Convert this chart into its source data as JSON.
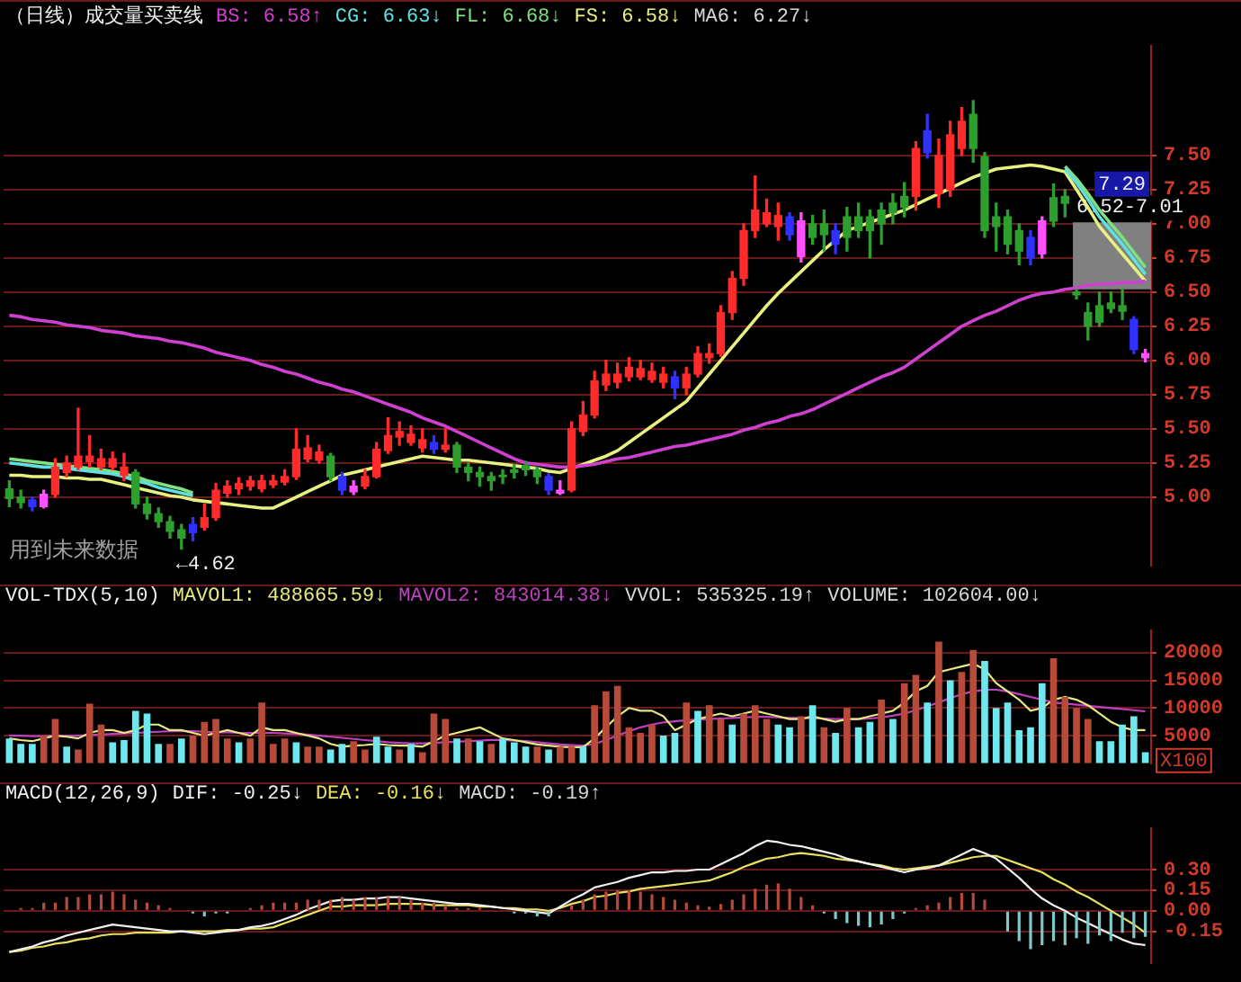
{
  "chart_data": [
    {
      "type": "candlestick",
      "title": "（日线）成交量买卖线",
      "categories": [
        null,
        null,
        null,
        null,
        null,
        null,
        null,
        null,
        null,
        null,
        null,
        null,
        null,
        null,
        null,
        null,
        null,
        null,
        null,
        null,
        null,
        null,
        null,
        null,
        null,
        null,
        null,
        null,
        null,
        null,
        null,
        null,
        null,
        null,
        null,
        null,
        null,
        null,
        null,
        null,
        null,
        null,
        null,
        null,
        null,
        null,
        null,
        null,
        null,
        null,
        null,
        null,
        null,
        null,
        null,
        null,
        null,
        null,
        null,
        null,
        null,
        null,
        null,
        null,
        null,
        null,
        null,
        null,
        null,
        null,
        null,
        null,
        null,
        null,
        null,
        null,
        null,
        null,
        null,
        null,
        null,
        null,
        null,
        null,
        null,
        null,
        null,
        null,
        null,
        null,
        null,
        null,
        null,
        null,
        null,
        null,
        null,
        null,
        null,
        null
      ],
      "ohlc": [
        [
          5.06,
          5.12,
          4.93,
          4.99
        ],
        [
          5.0,
          5.05,
          4.92,
          4.96
        ],
        [
          4.98,
          5.0,
          4.9,
          4.93
        ],
        [
          4.93,
          5.05,
          4.92,
          5.02
        ],
        [
          5.02,
          5.28,
          5.0,
          5.22
        ],
        [
          5.18,
          5.3,
          5.15,
          5.25
        ],
        [
          5.22,
          5.65,
          5.2,
          5.3
        ],
        [
          5.26,
          5.45,
          5.22,
          5.3
        ],
        [
          5.22,
          5.35,
          5.2,
          5.28
        ],
        [
          5.22,
          5.33,
          5.2,
          5.28
        ],
        [
          5.16,
          5.32,
          5.12,
          5.22
        ],
        [
          5.18,
          5.2,
          4.92,
          4.95
        ],
        [
          4.95,
          5.0,
          4.84,
          4.88
        ],
        [
          4.88,
          4.92,
          4.78,
          4.82
        ],
        [
          4.82,
          4.86,
          4.7,
          4.75
        ],
        [
          4.76,
          4.8,
          4.62,
          4.7
        ],
        [
          4.8,
          4.85,
          4.68,
          4.74
        ],
        [
          4.78,
          4.95,
          4.76,
          4.85
        ],
        [
          4.85,
          5.1,
          4.83,
          5.05
        ],
        [
          5.03,
          5.12,
          5.0,
          5.08
        ],
        [
          5.06,
          5.14,
          5.02,
          5.1
        ],
        [
          5.08,
          5.15,
          5.05,
          5.12
        ],
        [
          5.06,
          5.16,
          5.04,
          5.12
        ],
        [
          5.09,
          5.16,
          5.07,
          5.12
        ],
        [
          5.11,
          5.2,
          5.09,
          5.15
        ],
        [
          5.15,
          5.5,
          5.13,
          5.35
        ],
        [
          5.28,
          5.45,
          5.26,
          5.36
        ],
        [
          5.27,
          5.38,
          5.25,
          5.33
        ],
        [
          5.3,
          5.32,
          5.12,
          5.15
        ],
        [
          5.15,
          5.18,
          5.02,
          5.05
        ],
        [
          5.04,
          5.12,
          5.02,
          5.08
        ],
        [
          5.08,
          5.2,
          5.06,
          5.15
        ],
        [
          5.15,
          5.4,
          5.14,
          5.35
        ],
        [
          5.34,
          5.58,
          5.32,
          5.45
        ],
        [
          5.44,
          5.55,
          5.38,
          5.48
        ],
        [
          5.4,
          5.52,
          5.38,
          5.46
        ],
        [
          5.36,
          5.5,
          5.33,
          5.42
        ],
        [
          5.4,
          5.45,
          5.32,
          5.35
        ],
        [
          5.35,
          5.5,
          5.33,
          5.38
        ],
        [
          5.38,
          5.4,
          5.18,
          5.22
        ],
        [
          5.22,
          5.25,
          5.12,
          5.18
        ],
        [
          5.18,
          5.22,
          5.08,
          5.15
        ],
        [
          5.15,
          5.18,
          5.05,
          5.12
        ],
        [
          5.16,
          5.2,
          5.1,
          5.15
        ],
        [
          5.2,
          5.24,
          5.14,
          5.18
        ],
        [
          5.23,
          5.26,
          5.16,
          5.2
        ],
        [
          5.2,
          5.22,
          5.1,
          5.15
        ],
        [
          5.15,
          5.17,
          5.02,
          5.05
        ],
        [
          5.03,
          5.12,
          5.02,
          5.05
        ],
        [
          5.05,
          5.55,
          5.04,
          5.5
        ],
        [
          5.48,
          5.7,
          5.45,
          5.6
        ],
        [
          5.6,
          5.92,
          5.58,
          5.85
        ],
        [
          5.82,
          6.0,
          5.78,
          5.9
        ],
        [
          5.84,
          5.98,
          5.8,
          5.9
        ],
        [
          5.88,
          6.02,
          5.85,
          5.95
        ],
        [
          5.88,
          6.0,
          5.86,
          5.94
        ],
        [
          5.86,
          5.98,
          5.84,
          5.92
        ],
        [
          5.84,
          5.95,
          5.8,
          5.9
        ],
        [
          5.88,
          5.92,
          5.72,
          5.8
        ],
        [
          5.8,
          5.95,
          5.75,
          5.9
        ],
        [
          5.9,
          6.1,
          5.88,
          6.05
        ],
        [
          6.02,
          6.12,
          5.98,
          6.05
        ],
        [
          6.05,
          6.4,
          6.03,
          6.35
        ],
        [
          6.35,
          6.65,
          6.3,
          6.6
        ],
        [
          6.6,
          7.0,
          6.55,
          6.95
        ],
        [
          6.95,
          7.35,
          6.9,
          7.1
        ],
        [
          7.0,
          7.18,
          6.98,
          7.08
        ],
        [
          6.98,
          7.15,
          6.88,
          7.06
        ],
        [
          7.05,
          7.08,
          6.88,
          6.92
        ],
        [
          6.76,
          7.08,
          6.72,
          7.02
        ],
        [
          7.0,
          7.06,
          6.85,
          6.9
        ],
        [
          7.0,
          7.1,
          6.8,
          6.92
        ],
        [
          6.95,
          7.0,
          6.78,
          6.85
        ],
        [
          7.05,
          7.12,
          6.8,
          6.9
        ],
        [
          7.05,
          7.15,
          6.9,
          6.95
        ],
        [
          7.05,
          7.1,
          6.75,
          6.95
        ],
        [
          7.1,
          7.15,
          6.85,
          7.0
        ],
        [
          7.15,
          7.22,
          7.0,
          7.08
        ],
        [
          7.2,
          7.3,
          7.05,
          7.12
        ],
        [
          7.2,
          7.6,
          7.1,
          7.55
        ],
        [
          7.68,
          7.8,
          7.48,
          7.52
        ],
        [
          7.22,
          7.62,
          7.12,
          7.5
        ],
        [
          7.25,
          7.75,
          7.2,
          7.65
        ],
        [
          7.55,
          7.85,
          7.5,
          7.75
        ],
        [
          7.8,
          7.9,
          7.45,
          7.55
        ],
        [
          7.49,
          7.52,
          6.9,
          6.95
        ],
        [
          7.05,
          7.15,
          6.8,
          6.98
        ],
        [
          7.05,
          7.1,
          6.78,
          6.85
        ],
        [
          6.95,
          7.0,
          6.7,
          6.8
        ],
        [
          6.9,
          6.95,
          6.7,
          6.75
        ],
        [
          6.78,
          7.05,
          6.75,
          7.02
        ],
        [
          7.19,
          7.29,
          6.98,
          7.02
        ],
        [
          7.2,
          7.25,
          7.05,
          7.15
        ],
        [
          6.5,
          6.52,
          6.45,
          6.48
        ],
        [
          6.35,
          6.42,
          6.15,
          6.25
        ],
        [
          6.4,
          6.5,
          6.25,
          6.28
        ],
        [
          6.42,
          6.5,
          6.35,
          6.38
        ],
        [
          6.4,
          6.52,
          6.3,
          6.36
        ],
        [
          6.3,
          6.32,
          6.05,
          6.08
        ],
        [
          6.02,
          6.08,
          5.99,
          6.05
        ]
      ],
      "colors": [
        "#2e9e2e",
        "#2e9e2e",
        "#3030ff",
        "#ff50ff",
        "#ff2a2a",
        "#ff2a2a",
        "#ff2a2a",
        "#ff2a2a",
        "#ff2a2a",
        "#ff2a2a",
        "#ff2a2a",
        "#2e9e2e",
        "#2e9e2e",
        "#2e9e2e",
        "#2e9e2e",
        "#2e9e2e",
        "#3030ff",
        "#ff2a2a",
        "#ff2a2a",
        "#ff2a2a",
        "#ff2a2a",
        "#ff2a2a",
        "#ff2a2a",
        "#ff2a2a",
        "#ff2a2a",
        "#ff2a2a",
        "#ff2a2a",
        "#ff2a2a",
        "#2e9e2e",
        "#3030ff",
        "#ff50ff",
        "#ff2a2a",
        "#ff2a2a",
        "#ff2a2a",
        "#ff2a2a",
        "#ff2a2a",
        "#ff2a2a",
        "#3030ff",
        "#ff2a2a",
        "#2e9e2e",
        "#2e9e2e",
        "#2e9e2e",
        "#2e9e2e",
        "#2e9e2e",
        "#2e9e2e",
        "#2e9e2e",
        "#2e9e2e",
        "#3030ff",
        "#ff50ff",
        "#ff2a2a",
        "#ff2a2a",
        "#ff2a2a",
        "#ff2a2a",
        "#ff2a2a",
        "#ff2a2a",
        "#ff2a2a",
        "#ff2a2a",
        "#ff2a2a",
        "#3030ff",
        "#ff2a2a",
        "#ff2a2a",
        "#ff2a2a",
        "#ff2a2a",
        "#ff2a2a",
        "#ff2a2a",
        "#ff2a2a",
        "#ff2a2a",
        "#ff2a2a",
        "#3030ff",
        "#ff50ff",
        "#2e9e2e",
        "#2e9e2e",
        "#3030ff",
        "#2e9e2e",
        "#2e9e2e",
        "#2e9e2e",
        "#2e9e2e",
        "#2e9e2e",
        "#2e9e2e",
        "#ff2a2a",
        "#3030ff",
        "#ff2a2a",
        "#ff2a2a",
        "#ff2a2a",
        "#2e9e2e",
        "#2e9e2e",
        "#2e9e2e",
        "#2e9e2e",
        "#2e9e2e",
        "#3030ff",
        "#ff50ff",
        "#2e9e2e",
        "#2e9e2e",
        "#2e9e2e",
        "#2e9e2e",
        "#2e9e2e",
        "#2e9e2e",
        "#2e9e2e",
        "#3030ff",
        "#ff50ff"
      ],
      "series": [
        {
          "name": "BS: 6.58↑",
          "color": "#d040d0",
          "type": "line",
          "values": [
            6.33,
            6.32,
            6.3,
            6.29,
            6.28,
            6.26,
            6.25,
            6.24,
            6.22,
            6.21,
            6.2,
            6.18,
            6.17,
            6.16,
            6.14,
            6.13,
            6.11,
            6.09,
            6.06,
            6.04,
            6.02,
            6.0,
            5.97,
            5.95,
            5.92,
            5.9,
            5.87,
            5.84,
            5.82,
            5.79,
            5.77,
            5.74,
            5.71,
            5.68,
            5.65,
            5.62,
            5.58,
            5.55,
            5.52,
            5.48,
            5.44,
            5.4,
            5.36,
            5.32,
            5.28,
            5.25,
            5.24,
            5.23,
            5.22,
            5.22,
            5.23,
            5.24,
            5.26,
            5.28,
            5.29,
            5.31,
            5.33,
            5.35,
            5.37,
            5.38,
            5.4,
            5.42,
            5.44,
            5.46,
            5.49,
            5.51,
            5.54,
            5.56,
            5.59,
            5.61,
            5.64,
            5.68,
            5.72,
            5.76,
            5.8,
            5.84,
            5.88,
            5.91,
            5.95,
            6.01,
            6.07,
            6.13,
            6.19,
            6.25,
            6.29,
            6.33,
            6.36,
            6.4,
            6.44,
            6.47,
            6.49,
            6.5,
            6.52,
            6.53,
            6.55,
            6.56,
            6.56,
            6.57,
            6.57,
            6.58
          ]
        },
        {
          "name": "CG: 6.63↓",
          "color": "#60e0e0",
          "type": "line",
          "values": [
            5.25,
            5.24,
            5.23,
            5.22,
            5.22,
            5.21,
            5.2,
            5.19,
            5.18,
            5.17,
            5.15,
            5.12,
            5.1,
            5.07,
            5.05,
            5.03,
            5.01,
            null,
            null,
            null,
            null,
            null,
            null,
            null,
            null,
            null,
            null,
            null,
            null,
            null,
            null,
            null,
            null,
            null,
            null,
            null,
            null,
            null,
            null,
            null,
            null,
            null,
            null,
            null,
            null,
            null,
            null,
            null,
            null,
            null,
            null,
            null,
            null,
            null,
            null,
            null,
            null,
            null,
            null,
            null,
            null,
            null,
            null,
            null,
            null,
            null,
            null,
            null,
            null,
            null,
            null,
            null,
            null,
            null,
            null,
            null,
            null,
            null,
            null,
            null,
            null,
            null,
            null,
            null,
            null,
            null,
            null,
            null,
            null,
            null,
            null,
            null,
            7.4,
            7.3,
            7.18,
            7.05,
            6.95,
            6.85,
            6.74,
            6.63
          ]
        },
        {
          "name": "FL: 6.68↓",
          "color": "#80e080",
          "type": "line",
          "values": [
            5.28,
            5.27,
            5.26,
            5.25,
            5.24,
            5.23,
            5.22,
            5.21,
            5.2,
            5.19,
            5.17,
            5.15,
            5.12,
            5.1,
            5.08,
            5.06,
            5.03,
            null,
            null,
            null,
            null,
            null,
            null,
            null,
            null,
            null,
            null,
            null,
            null,
            null,
            null,
            null,
            null,
            null,
            null,
            null,
            null,
            null,
            null,
            null,
            null,
            null,
            null,
            null,
            null,
            null,
            null,
            null,
            null,
            null,
            null,
            null,
            null,
            null,
            null,
            null,
            null,
            null,
            null,
            null,
            null,
            null,
            null,
            null,
            null,
            null,
            null,
            null,
            null,
            null,
            null,
            null,
            null,
            null,
            null,
            null,
            null,
            null,
            null,
            null,
            null,
            null,
            null,
            null,
            null,
            null,
            null,
            null,
            null,
            null,
            null,
            null,
            7.42,
            7.33,
            7.22,
            7.1,
            7.0,
            6.9,
            6.79,
            6.68
          ]
        },
        {
          "name": "FS: 6.58↓",
          "color": "#e8f080",
          "type": "line",
          "values": [
            5.16,
            5.16,
            5.15,
            5.15,
            5.15,
            5.14,
            5.14,
            5.13,
            5.13,
            5.11,
            5.09,
            5.07,
            5.05,
            5.03,
            5.01,
            5.0,
            4.98,
            4.97,
            4.96,
            4.95,
            4.94,
            4.93,
            4.92,
            4.92,
            4.96,
            5.0,
            5.04,
            5.08,
            5.12,
            5.16,
            5.18,
            5.2,
            5.22,
            5.24,
            5.26,
            5.28,
            5.3,
            5.29,
            5.28,
            5.27,
            5.27,
            5.26,
            5.25,
            5.24,
            5.23,
            5.22,
            5.21,
            5.19,
            5.18,
            5.21,
            5.24,
            5.27,
            5.3,
            5.34,
            5.4,
            5.46,
            5.52,
            5.58,
            5.64,
            5.7,
            5.8,
            5.9,
            6.0,
            6.1,
            6.2,
            6.3,
            6.4,
            6.49,
            6.57,
            6.65,
            6.73,
            6.81,
            6.88,
            6.95,
            6.98,
            7.01,
            7.04,
            7.07,
            7.1,
            7.14,
            7.18,
            7.22,
            7.26,
            7.3,
            7.34,
            7.37,
            7.4,
            7.41,
            7.42,
            7.43,
            7.42,
            7.4,
            7.38,
            7.25,
            7.12,
            6.98,
            6.88,
            6.78,
            6.68,
            6.58
          ]
        }
      ],
      "ylim": [
        4.5,
        8.3
      ],
      "yticks": [
        {
          "value": 5,
          "label": "5.00"
        },
        {
          "value": 5.25,
          "label": "5.25"
        },
        {
          "value": 5.5,
          "label": "5.50"
        },
        {
          "value": 5.75,
          "label": "5.75"
        },
        {
          "value": 6,
          "label": "6.00"
        },
        {
          "value": 6.25,
          "label": "6.25"
        },
        {
          "value": 6.5,
          "label": "6.50"
        },
        {
          "value": 6.75,
          "label": "6.75"
        },
        {
          "value": 7,
          "label": "7.00"
        },
        {
          "value": 7.25,
          "label": "7.25"
        },
        {
          "value": 7.5,
          "label": "7.50"
        }
      ],
      "grid": "y",
      "legend": "top",
      "bands": [
        {
          "axis": "y",
          "from": 6.52,
          "to": 7.01,
          "label": "6.52-7.01",
          "color": "#808080"
        }
      ],
      "annotations": [
        {
          "text": "7.29",
          "y": 7.29
        },
        "MA6: 6.27↓",
        "用到未来数据",
        "←4.62"
      ]
    },
    {
      "type": "bar",
      "title": "VOL-TDX(5,10)",
      "categories": [
        null,
        null,
        null,
        null,
        null,
        null,
        null,
        null,
        null,
        null,
        null,
        null,
        null,
        null,
        null,
        null,
        null,
        null,
        null,
        null,
        null,
        null,
        null,
        null,
        null,
        null,
        null,
        null,
        null,
        null,
        null,
        null,
        null,
        null,
        null,
        null,
        null,
        null,
        null,
        null,
        null,
        null,
        null,
        null,
        null,
        null,
        null,
        null,
        null,
        null,
        null,
        null,
        null,
        null,
        null,
        null,
        null,
        null,
        null,
        null,
        null,
        null,
        null,
        null,
        null,
        null,
        null,
        null,
        null,
        null,
        null,
        null,
        null,
        null,
        null,
        null,
        null,
        null,
        null,
        null,
        null,
        null,
        null,
        null,
        null,
        null,
        null,
        null,
        null,
        null,
        null,
        null,
        null,
        null,
        null,
        null,
        null,
        null,
        null,
        null
      ],
      "values": [
        4500,
        3500,
        3500,
        5000,
        8000,
        3000,
        2500,
        10800,
        7000,
        3800,
        4200,
        9500,
        9000,
        3500,
        3500,
        4500,
        5000,
        7500,
        8000,
        4500,
        3800,
        4500,
        11000,
        3500,
        4500,
        3800,
        3000,
        3000,
        2500,
        3500,
        4000,
        2500,
        4800,
        3000,
        2500,
        3500,
        2000,
        9000,
        8000,
        4500,
        4500,
        4000,
        3500,
        4500,
        3800,
        3000,
        3000,
        2500,
        3000,
        3000,
        3000,
        10500,
        13000,
        14000,
        6500,
        5500,
        7000,
        5000,
        5500,
        11000,
        9500,
        10500,
        8000,
        7000,
        9000,
        10500,
        8000,
        7000,
        6500,
        8500,
        10500,
        6500,
        5500,
        10000,
        6500,
        7500,
        11500,
        8000,
        14500,
        16000,
        11000,
        22000,
        15000,
        16500,
        20500,
        18500,
        10000,
        11000,
        6000,
        6500,
        14500,
        19000,
        12000,
        10000,
        8000,
        4000,
        4000,
        7000,
        8500,
        2000
      ],
      "colors": [
        "#6ee8ee",
        "#6ee8ee",
        "#6ee8ee",
        "#b84a3a",
        "#b84a3a",
        "#6ee8ee",
        "#b84a3a",
        "#b84a3a",
        "#b84a3a",
        "#6ee8ee",
        "#6ee8ee",
        "#6ee8ee",
        "#6ee8ee",
        "#6ee8ee",
        "#b84a3a",
        "#6ee8ee",
        "#b84a3a",
        "#b84a3a",
        "#b84a3a",
        "#b84a3a",
        "#6ee8ee",
        "#b84a3a",
        "#b84a3a",
        "#b84a3a",
        "#b84a3a",
        "#6ee8ee",
        "#b84a3a",
        "#b84a3a",
        "#6ee8ee",
        "#6ee8ee",
        "#b84a3a",
        "#b84a3a",
        "#6ee8ee",
        "#6ee8ee",
        "#b84a3a",
        "#6ee8ee",
        "#b84a3a",
        "#b84a3a",
        "#b84a3a",
        "#6ee8ee",
        "#b84a3a",
        "#6ee8ee",
        "#b84a3a",
        "#6ee8ee",
        "#6ee8ee",
        "#6ee8ee",
        "#b84a3a",
        "#6ee8ee",
        "#b84a3a",
        "#b84a3a",
        "#6ee8ee",
        "#b84a3a",
        "#b84a3a",
        "#b84a3a",
        "#b84a3a",
        "#b84a3a",
        "#b84a3a",
        "#6ee8ee",
        "#6ee8ee",
        "#b84a3a",
        "#6ee8ee",
        "#b84a3a",
        "#b84a3a",
        "#6ee8ee",
        "#b84a3a",
        "#b84a3a",
        "#b84a3a",
        "#6ee8ee",
        "#6ee8ee",
        "#b84a3a",
        "#6ee8ee",
        "#b84a3a",
        "#6ee8ee",
        "#b84a3a",
        "#6ee8ee",
        "#6ee8ee",
        "#b84a3a",
        "#6ee8ee",
        "#b84a3a",
        "#b84a3a",
        "#6ee8ee",
        "#b84a3a",
        "#6ee8ee",
        "#b84a3a",
        "#b84a3a",
        "#6ee8ee",
        "#6ee8ee",
        "#6ee8ee",
        "#6ee8ee",
        "#6ee8ee",
        "#6ee8ee",
        "#b84a3a",
        "#b84a3a",
        "#b84a3a",
        "#b84a3a",
        "#6ee8ee",
        "#6ee8ee",
        "#6ee8ee",
        "#6ee8ee",
        "#6ee8ee"
      ],
      "series": [
        {
          "name": "MAVOL1: 488665.59↓",
          "color": "#e8e880",
          "type": "line",
          "values": [
            4500,
            4200,
            4000,
            4500,
            5000,
            4800,
            4500,
            5500,
            6000,
            6000,
            5500,
            6000,
            7000,
            7000,
            6000,
            6000,
            5500,
            5000,
            5500,
            6000,
            5500,
            5000,
            6500,
            6000,
            6000,
            5500,
            5000,
            4500,
            3500,
            3000,
            3200,
            3300,
            3500,
            3300,
            3200,
            3200,
            3000,
            4000,
            5000,
            5500,
            6000,
            6500,
            5500,
            4500,
            4200,
            3800,
            3400,
            3200,
            3000,
            2900,
            2900,
            4500,
            6500,
            8500,
            10000,
            9500,
            9500,
            8500,
            6000,
            7000,
            8000,
            8500,
            9000,
            8500,
            9000,
            9500,
            9000,
            8500,
            8000,
            8000,
            8500,
            8000,
            7500,
            8000,
            8000,
            8500,
            9000,
            9500,
            11000,
            13000,
            14000,
            16500,
            17000,
            17500,
            18000,
            17000,
            14500,
            13000,
            11500,
            9500,
            10000,
            11500,
            12000,
            11500,
            10500,
            9000,
            7500,
            6500,
            6000,
            6000
          ]
        },
        {
          "name": "MAVOL2: 843014.38↓",
          "color": "#c040c0",
          "type": "line",
          "values": [
            5000,
            5000,
            4900,
            4900,
            5000,
            5000,
            5000,
            5100,
            5200,
            5300,
            5400,
            5500,
            5600,
            5700,
            5800,
            5800,
            5800,
            5700,
            5600,
            5600,
            5500,
            5500,
            5500,
            5500,
            5400,
            5300,
            5200,
            5000,
            4800,
            4600,
            4400,
            4200,
            4000,
            3800,
            3700,
            3600,
            3600,
            3700,
            3800,
            3900,
            4000,
            4100,
            4200,
            4200,
            4100,
            4000,
            3800,
            3600,
            3400,
            3300,
            3200,
            3500,
            4200,
            5000,
            5800,
            6500,
            7000,
            7400,
            7600,
            7800,
            7900,
            8000,
            8100,
            8200,
            8300,
            8400,
            8400,
            8300,
            8200,
            8200,
            8100,
            8100,
            8000,
            8000,
            8000,
            8100,
            8300,
            8600,
            9000,
            9600,
            10300,
            11000,
            11800,
            12500,
            13000,
            13300,
            13300,
            13000,
            12500,
            12000,
            11500,
            11000,
            10800,
            10600,
            10400,
            10200,
            10000,
            9800,
            9600,
            9400
          ]
        }
      ],
      "ylim": [
        0,
        24000
      ],
      "yticks": [
        5000,
        10000,
        15000,
        20000
      ],
      "ylabel": "X100",
      "grid": "y",
      "legend": "top",
      "annotations": [
        "VVOL: 535325.19↑",
        "VOLUME: 102604.00↓"
      ]
    },
    {
      "type": "bar",
      "title": "MACD(12,26,9)",
      "categories": [
        null,
        null,
        null,
        null,
        null,
        null,
        null,
        null,
        null,
        null,
        null,
        null,
        null,
        null,
        null,
        null,
        null,
        null,
        null,
        null,
        null,
        null,
        null,
        null,
        null,
        null,
        null,
        null,
        null,
        null,
        null,
        null,
        null,
        null,
        null,
        null,
        null,
        null,
        null,
        null,
        null,
        null,
        null,
        null,
        null,
        null,
        null,
        null,
        null,
        null,
        null,
        null,
        null,
        null,
        null,
        null,
        null,
        null,
        null,
        null,
        null,
        null,
        null,
        null,
        null,
        null,
        null,
        null,
        null,
        null,
        null,
        null,
        null,
        null,
        null,
        null,
        null,
        null,
        null,
        null,
        null,
        null,
        null,
        null,
        null,
        null,
        null,
        null,
        null,
        null,
        null,
        null,
        null,
        null,
        null,
        null,
        null,
        null,
        null,
        null
      ],
      "values": [
        0.0,
        0.02,
        0.02,
        0.06,
        0.06,
        0.1,
        0.1,
        0.12,
        0.12,
        0.14,
        0.12,
        0.08,
        0.06,
        0.04,
        0.02,
        0.0,
        -0.02,
        -0.04,
        -0.02,
        -0.02,
        0.0,
        0.02,
        0.04,
        0.06,
        0.06,
        0.06,
        0.08,
        0.08,
        0.08,
        0.1,
        0.08,
        0.1,
        0.1,
        0.1,
        0.1,
        0.08,
        0.06,
        0.06,
        0.04,
        0.02,
        0.02,
        0.02,
        0.0,
        0.0,
        -0.02,
        -0.02,
        -0.04,
        -0.04,
        0.0,
        0.04,
        0.08,
        0.12,
        0.14,
        0.15,
        0.15,
        0.14,
        0.12,
        0.1,
        0.08,
        0.06,
        0.04,
        0.03,
        0.05,
        0.08,
        0.12,
        0.16,
        0.19,
        0.2,
        0.16,
        0.1,
        0.04,
        -0.02,
        -0.06,
        -0.09,
        -0.11,
        -0.12,
        -0.1,
        -0.06,
        -0.02,
        0.02,
        0.04,
        0.06,
        0.1,
        0.13,
        0.13,
        0.08,
        0.0,
        -0.15,
        -0.22,
        -0.28,
        -0.25,
        -0.22,
        -0.25,
        -0.2,
        -0.24,
        -0.18,
        -0.22,
        -0.16,
        -0.2,
        -0.19
      ],
      "colors": [
        "#b84a3a",
        "#b84a3a",
        "#b84a3a",
        "#b84a3a",
        "#b84a3a",
        "#b84a3a",
        "#b84a3a",
        "#b84a3a",
        "#b84a3a",
        "#b84a3a",
        "#b84a3a",
        "#b84a3a",
        "#b84a3a",
        "#b84a3a",
        "#b84a3a",
        "#b84a3a",
        "#80c8c8",
        "#80c8c8",
        "#80c8c8",
        "#80c8c8",
        "#b84a3a",
        "#b84a3a",
        "#b84a3a",
        "#b84a3a",
        "#b84a3a",
        "#b84a3a",
        "#b84a3a",
        "#b84a3a",
        "#b84a3a",
        "#b84a3a",
        "#b84a3a",
        "#b84a3a",
        "#b84a3a",
        "#b84a3a",
        "#b84a3a",
        "#b84a3a",
        "#b84a3a",
        "#b84a3a",
        "#b84a3a",
        "#b84a3a",
        "#b84a3a",
        "#b84a3a",
        "#b84a3a",
        "#b84a3a",
        "#80c8c8",
        "#80c8c8",
        "#80c8c8",
        "#80c8c8",
        "#b84a3a",
        "#b84a3a",
        "#b84a3a",
        "#b84a3a",
        "#b84a3a",
        "#b84a3a",
        "#b84a3a",
        "#b84a3a",
        "#b84a3a",
        "#b84a3a",
        "#b84a3a",
        "#b84a3a",
        "#b84a3a",
        "#b84a3a",
        "#b84a3a",
        "#b84a3a",
        "#b84a3a",
        "#b84a3a",
        "#b84a3a",
        "#b84a3a",
        "#b84a3a",
        "#b84a3a",
        "#b84a3a",
        "#80c8c8",
        "#80c8c8",
        "#80c8c8",
        "#80c8c8",
        "#80c8c8",
        "#80c8c8",
        "#80c8c8",
        "#80c8c8",
        "#b84a3a",
        "#b84a3a",
        "#b84a3a",
        "#b84a3a",
        "#b84a3a",
        "#b84a3a",
        "#b84a3a",
        "#b84a3a",
        "#80c8c8",
        "#80c8c8",
        "#80c8c8",
        "#80c8c8",
        "#80c8c8",
        "#80c8c8",
        "#80c8c8",
        "#80c8c8",
        "#80c8c8",
        "#80c8c8",
        "#80c8c8",
        "#80c8c8",
        "#80c8c8"
      ],
      "series": [
        {
          "name": "DIF: -0.25↓",
          "color": "#f0f0f0",
          "type": "line",
          "values": [
            -0.3,
            -0.28,
            -0.26,
            -0.23,
            -0.21,
            -0.18,
            -0.16,
            -0.14,
            -0.12,
            -0.1,
            -0.11,
            -0.12,
            -0.13,
            -0.14,
            -0.15,
            -0.15,
            -0.16,
            -0.17,
            -0.16,
            -0.15,
            -0.14,
            -0.12,
            -0.11,
            -0.09,
            -0.06,
            -0.03,
            0.01,
            0.04,
            0.07,
            0.08,
            0.08,
            0.09,
            0.09,
            0.1,
            0.1,
            0.09,
            0.08,
            0.07,
            0.06,
            0.05,
            0.05,
            0.04,
            0.03,
            0.02,
            0.01,
            0.0,
            -0.01,
            -0.02,
            0.03,
            0.08,
            0.12,
            0.17,
            0.19,
            0.21,
            0.24,
            0.26,
            0.28,
            0.28,
            0.29,
            0.29,
            0.3,
            0.3,
            0.34,
            0.38,
            0.42,
            0.47,
            0.51,
            0.5,
            0.48,
            0.47,
            0.45,
            0.43,
            0.41,
            0.38,
            0.36,
            0.34,
            0.32,
            0.3,
            0.28,
            0.3,
            0.31,
            0.33,
            0.37,
            0.41,
            0.45,
            0.42,
            0.38,
            0.31,
            0.24,
            0.16,
            0.09,
            0.04,
            0.0,
            -0.05,
            -0.09,
            -0.13,
            -0.17,
            -0.21,
            -0.24,
            -0.25
          ]
        },
        {
          "name": "DEA: -0.16↓",
          "color": "#e8e060",
          "type": "line",
          "values": [
            -0.3,
            -0.29,
            -0.27,
            -0.26,
            -0.24,
            -0.23,
            -0.21,
            -0.2,
            -0.18,
            -0.17,
            -0.17,
            -0.16,
            -0.16,
            -0.16,
            -0.16,
            -0.15,
            -0.15,
            -0.15,
            -0.15,
            -0.14,
            -0.14,
            -0.13,
            -0.13,
            -0.12,
            -0.09,
            -0.06,
            -0.03,
            0.0,
            0.03,
            0.03,
            0.04,
            0.04,
            0.04,
            0.05,
            0.05,
            0.05,
            0.05,
            0.04,
            0.04,
            0.04,
            0.04,
            0.03,
            0.03,
            0.02,
            0.02,
            0.01,
            0.01,
            0.0,
            0.02,
            0.05,
            0.07,
            0.1,
            0.11,
            0.13,
            0.14,
            0.16,
            0.17,
            0.18,
            0.19,
            0.2,
            0.21,
            0.22,
            0.25,
            0.28,
            0.32,
            0.35,
            0.38,
            0.39,
            0.41,
            0.42,
            0.41,
            0.4,
            0.38,
            0.37,
            0.36,
            0.34,
            0.33,
            0.31,
            0.3,
            0.31,
            0.32,
            0.33,
            0.35,
            0.37,
            0.39,
            0.4,
            0.4,
            0.37,
            0.34,
            0.31,
            0.28,
            0.23,
            0.19,
            0.14,
            0.1,
            0.05,
            0.0,
            -0.05,
            -0.1,
            -0.16
          ]
        }
      ],
      "ylim": [
        -0.38,
        0.6
      ],
      "yticks": [
        {
          "value": -0.15,
          "label": "-0.15"
        },
        {
          "value": 0,
          "label": "0.00"
        },
        {
          "value": 0.15,
          "label": "0.15"
        },
        {
          "value": 0.3,
          "label": "0.30"
        }
      ],
      "grid": "y",
      "legend": "top",
      "annotations": [
        "MACD: -0.19↑"
      ]
    }
  ]
}
